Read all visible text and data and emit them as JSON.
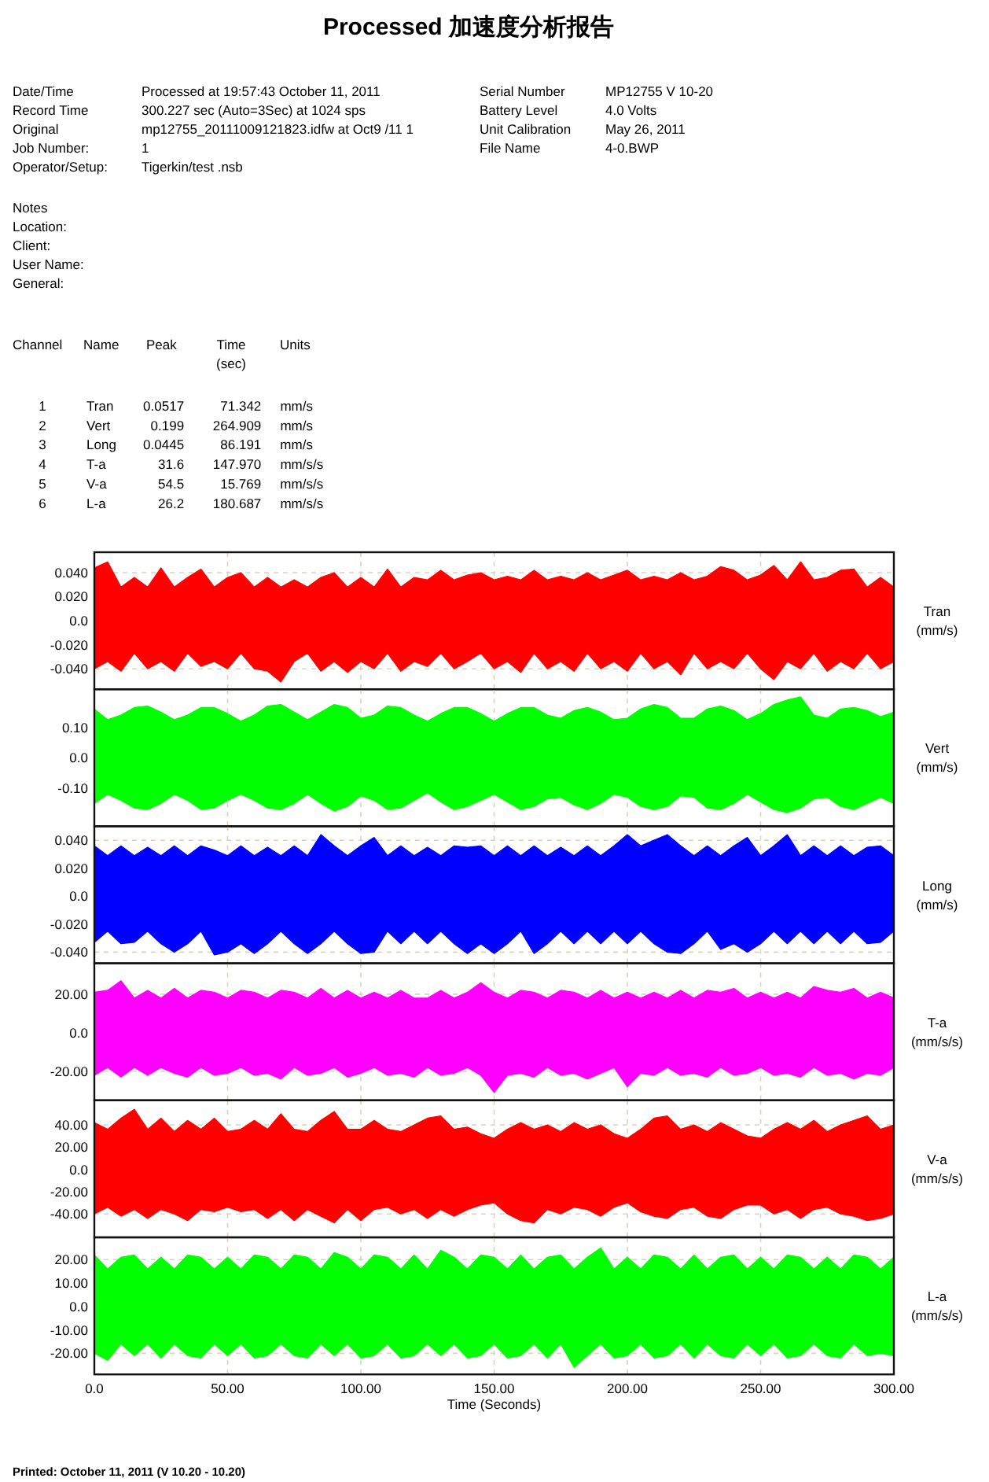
{
  "chart_data": [
    {
      "type": "other",
      "title": "Processed 加速度分析报告",
      "annotations": [
        "Date/Time",
        "Processed at 19:57:43 October 11, 2011",
        "Serial Number",
        "MP12755 V 10-20",
        "Record Time",
        "300.227 sec (Auto=3Sec) at 1024 sps",
        "Battery Level",
        "4.0 Volts",
        "Original",
        "mp12755_20111009121823.idfw at Oct9 /11 1",
        "Unit Calibration",
        "May 26, 2011",
        "Job Number:",
        "1",
        "File Name",
        "4-0.BWP",
        "Operator/Setup:",
        "Tigerkin/test .nsb",
        "Notes",
        "Location:",
        "Client:",
        "User Name:",
        "General:",
        "Channel",
        "Name",
        "Peak",
        "Time (sec)",
        "Units",
        "1 Tran 0.0517 71.342 mm/s",
        "2 Vert 0.199 264.909 mm/s",
        "3 Long 0.0445 86.191 mm/s",
        "4 T-a 31.6 147.970 mm/s/s",
        "5 V-a 54.5 15.769 mm/s/s",
        "6 L-a 26.2 180.687 mm/s/s"
      ]
    },
    {
      "type": "area",
      "ylabel": "Tran (mm/s)",
      "x": [
        0,
        5,
        10,
        15,
        20,
        25,
        30,
        35,
        40,
        45,
        50,
        55,
        60,
        65,
        70,
        75,
        80,
        85,
        90,
        95,
        100,
        105,
        110,
        115,
        120,
        125,
        130,
        135,
        140,
        145,
        150,
        155,
        160,
        165,
        170,
        175,
        180,
        185,
        190,
        195,
        200,
        205,
        210,
        215,
        220,
        225,
        230,
        235,
        240,
        245,
        250,
        255,
        260,
        265,
        270,
        275,
        280,
        285,
        290,
        295,
        300
      ],
      "xlim": [
        0,
        300
      ],
      "xticks": [
        0,
        50,
        100,
        150,
        200,
        250,
        300
      ],
      "ylim": [
        -0.057,
        0.057
      ],
      "yticks": [
        {
          "value": 0.04,
          "label": "0.040"
        },
        {
          "value": 0.02,
          "label": "0.020"
        },
        {
          "value": 0,
          "label": "0.0"
        },
        {
          "value": -0.02,
          "label": "-0.020"
        },
        {
          "value": -0.04,
          "label": "-0.040"
        }
      ],
      "grid": true,
      "tick_labels": "y",
      "series": [
        {
          "color": "#ff0000",
          "values": [
            0.044,
            0.049,
            0.028,
            0.036,
            0.028,
            0.044,
            0.028,
            0.036,
            0.043,
            0.028,
            0.036,
            0.04,
            0.028,
            0.036,
            0.028,
            0.034,
            0.028,
            0.036,
            0.04,
            0.028,
            0.036,
            0.028,
            0.043,
            0.028,
            0.036,
            0.034,
            0.042,
            0.034,
            0.038,
            0.04,
            0.034,
            0.037,
            0.034,
            0.042,
            0.034,
            0.037,
            0.034,
            0.04,
            0.034,
            0.038,
            0.042,
            0.034,
            0.037,
            0.034,
            0.04,
            0.034,
            0.037,
            0.045,
            0.042,
            0.034,
            0.038,
            0.046,
            0.034,
            0.049,
            0.034,
            0.036,
            0.042,
            0.043,
            0.028,
            0.036,
            0.028
          ]
        },
        {
          "color": "#ff0000",
          "values": [
            -0.04,
            -0.034,
            -0.042,
            -0.027,
            -0.04,
            -0.034,
            -0.042,
            -0.027,
            -0.038,
            -0.034,
            -0.04,
            -0.027,
            -0.04,
            -0.042,
            -0.051,
            -0.034,
            -0.027,
            -0.042,
            -0.034,
            -0.043,
            -0.034,
            -0.04,
            -0.027,
            -0.042,
            -0.034,
            -0.038,
            -0.027,
            -0.04,
            -0.034,
            -0.027,
            -0.04,
            -0.034,
            -0.043,
            -0.027,
            -0.04,
            -0.034,
            -0.042,
            -0.027,
            -0.04,
            -0.034,
            -0.042,
            -0.027,
            -0.04,
            -0.034,
            -0.045,
            -0.027,
            -0.04,
            -0.034,
            -0.04,
            -0.027,
            -0.04,
            -0.049,
            -0.034,
            -0.04,
            -0.027,
            -0.042,
            -0.034,
            -0.04,
            -0.027,
            -0.04,
            -0.034
          ]
        }
      ]
    },
    {
      "type": "area",
      "ylabel": "Vert (mm/s)",
      "x": [
        0,
        5,
        10,
        15,
        20,
        25,
        30,
        35,
        40,
        45,
        50,
        55,
        60,
        65,
        70,
        75,
        80,
        85,
        90,
        95,
        100,
        105,
        110,
        115,
        120,
        125,
        130,
        135,
        140,
        145,
        150,
        155,
        160,
        165,
        170,
        175,
        180,
        185,
        190,
        195,
        200,
        205,
        210,
        215,
        220,
        225,
        230,
        235,
        240,
        245,
        250,
        255,
        260,
        265,
        270,
        275,
        280,
        285,
        290,
        295,
        300
      ],
      "xlim": [
        0,
        300
      ],
      "xticks": [
        0,
        50,
        100,
        150,
        200,
        250,
        300
      ],
      "ylim": [
        -0.225,
        0.225
      ],
      "yticks": [
        {
          "value": 0.1,
          "label": "0.10"
        },
        {
          "value": 0,
          "label": "0.0"
        },
        {
          "value": -0.1,
          "label": "-0.10"
        }
      ],
      "grid": true,
      "tick_labels": "y",
      "series": [
        {
          "color": "#00ff00",
          "values": [
            0.16,
            0.125,
            0.14,
            0.165,
            0.17,
            0.15,
            0.125,
            0.14,
            0.165,
            0.165,
            0.145,
            0.12,
            0.14,
            0.17,
            0.175,
            0.15,
            0.125,
            0.15,
            0.175,
            0.165,
            0.13,
            0.14,
            0.17,
            0.165,
            0.14,
            0.12,
            0.145,
            0.165,
            0.165,
            0.145,
            0.12,
            0.145,
            0.165,
            0.165,
            0.14,
            0.13,
            0.155,
            0.165,
            0.15,
            0.125,
            0.13,
            0.16,
            0.175,
            0.165,
            0.13,
            0.13,
            0.16,
            0.17,
            0.155,
            0.125,
            0.145,
            0.175,
            0.19,
            0.2,
            0.14,
            0.13,
            0.16,
            0.165,
            0.155,
            0.135,
            0.15
          ]
        },
        {
          "color": "#00ff00",
          "values": [
            -0.15,
            -0.12,
            -0.14,
            -0.165,
            -0.17,
            -0.15,
            -0.12,
            -0.14,
            -0.17,
            -0.165,
            -0.14,
            -0.12,
            -0.14,
            -0.165,
            -0.17,
            -0.15,
            -0.12,
            -0.15,
            -0.175,
            -0.16,
            -0.125,
            -0.14,
            -0.17,
            -0.165,
            -0.14,
            -0.115,
            -0.145,
            -0.17,
            -0.16,
            -0.14,
            -0.12,
            -0.145,
            -0.17,
            -0.16,
            -0.135,
            -0.13,
            -0.155,
            -0.17,
            -0.15,
            -0.12,
            -0.13,
            -0.16,
            -0.17,
            -0.16,
            -0.125,
            -0.13,
            -0.165,
            -0.17,
            -0.15,
            -0.12,
            -0.145,
            -0.17,
            -0.18,
            -0.165,
            -0.135,
            -0.13,
            -0.16,
            -0.17,
            -0.15,
            -0.13,
            -0.15
          ]
        }
      ]
    },
    {
      "type": "area",
      "ylabel": "Long (mm/s)",
      "x": [
        0,
        5,
        10,
        15,
        20,
        25,
        30,
        35,
        40,
        45,
        50,
        55,
        60,
        65,
        70,
        75,
        80,
        85,
        90,
        95,
        100,
        105,
        110,
        115,
        120,
        125,
        130,
        135,
        140,
        145,
        150,
        155,
        160,
        165,
        170,
        175,
        180,
        185,
        190,
        195,
        200,
        205,
        210,
        215,
        220,
        225,
        230,
        235,
        240,
        245,
        250,
        255,
        260,
        265,
        270,
        275,
        280,
        285,
        290,
        295,
        300
      ],
      "xlim": [
        0,
        300
      ],
      "xticks": [
        0,
        50,
        100,
        150,
        200,
        250,
        300
      ],
      "ylim": [
        -0.048,
        0.05
      ],
      "yticks": [
        {
          "value": 0.04,
          "label": "0.040"
        },
        {
          "value": 0.02,
          "label": "0.020"
        },
        {
          "value": 0,
          "label": "0.0"
        },
        {
          "value": -0.02,
          "label": "-0.020"
        },
        {
          "value": -0.04,
          "label": "-0.040"
        }
      ],
      "grid": true,
      "tick_labels": "y",
      "series": [
        {
          "color": "#0000ff",
          "values": [
            0.036,
            0.029,
            0.036,
            0.029,
            0.035,
            0.029,
            0.036,
            0.029,
            0.036,
            0.033,
            0.029,
            0.036,
            0.029,
            0.035,
            0.029,
            0.036,
            0.029,
            0.044,
            0.036,
            0.029,
            0.036,
            0.042,
            0.029,
            0.036,
            0.029,
            0.035,
            0.029,
            0.036,
            0.035,
            0.036,
            0.029,
            0.036,
            0.029,
            0.036,
            0.029,
            0.035,
            0.029,
            0.036,
            0.029,
            0.036,
            0.044,
            0.036,
            0.04,
            0.044,
            0.036,
            0.029,
            0.036,
            0.029,
            0.036,
            0.042,
            0.029,
            0.036,
            0.044,
            0.029,
            0.036,
            0.029,
            0.036,
            0.029,
            0.035,
            0.036,
            0.029
          ]
        },
        {
          "color": "#0000ff",
          "values": [
            -0.033,
            -0.025,
            -0.034,
            -0.033,
            -0.025,
            -0.034,
            -0.04,
            -0.034,
            -0.025,
            -0.042,
            -0.04,
            -0.034,
            -0.041,
            -0.034,
            -0.025,
            -0.034,
            -0.041,
            -0.034,
            -0.025,
            -0.034,
            -0.041,
            -0.04,
            -0.025,
            -0.034,
            -0.025,
            -0.034,
            -0.025,
            -0.034,
            -0.041,
            -0.034,
            -0.041,
            -0.034,
            -0.025,
            -0.041,
            -0.034,
            -0.025,
            -0.034,
            -0.025,
            -0.034,
            -0.025,
            -0.034,
            -0.025,
            -0.034,
            -0.04,
            -0.041,
            -0.034,
            -0.025,
            -0.038,
            -0.034,
            -0.04,
            -0.034,
            -0.025,
            -0.034,
            -0.025,
            -0.034,
            -0.025,
            -0.034,
            -0.025,
            -0.034,
            -0.033,
            -0.025
          ]
        }
      ]
    },
    {
      "type": "area",
      "ylabel": "T-a (mm/s/s)",
      "x": [
        0,
        5,
        10,
        15,
        20,
        25,
        30,
        35,
        40,
        45,
        50,
        55,
        60,
        65,
        70,
        75,
        80,
        85,
        90,
        95,
        100,
        105,
        110,
        115,
        120,
        125,
        130,
        135,
        140,
        145,
        150,
        155,
        160,
        165,
        170,
        175,
        180,
        185,
        190,
        195,
        200,
        205,
        210,
        215,
        220,
        225,
        230,
        235,
        240,
        245,
        250,
        255,
        260,
        265,
        270,
        275,
        280,
        285,
        290,
        295,
        300
      ],
      "xlim": [
        0,
        300
      ],
      "xticks": [
        0,
        50,
        100,
        150,
        200,
        250,
        300
      ],
      "ylim": [
        -35,
        36
      ],
      "yticks": [
        {
          "value": 20,
          "label": "20.00"
        },
        {
          "value": 0,
          "label": "0.0"
        },
        {
          "value": -20,
          "label": "-20.00"
        }
      ],
      "grid": true,
      "tick_labels": "y",
      "series": [
        {
          "color": "#ff00ff",
          "values": [
            21,
            22,
            27,
            18,
            22,
            18,
            23,
            18,
            22,
            21,
            18,
            22,
            21,
            18,
            22,
            21,
            18,
            23,
            18,
            22,
            18,
            21,
            18,
            22,
            18,
            18,
            22,
            18,
            21,
            26,
            21,
            18,
            22,
            21,
            18,
            22,
            21,
            18,
            22,
            18,
            21,
            18,
            21,
            18,
            22,
            18,
            22,
            21,
            23,
            18,
            21,
            18,
            21,
            18,
            24,
            22,
            21,
            23,
            18,
            21,
            18
          ]
        },
        {
          "color": "#ff00ff",
          "values": [
            -22,
            -18,
            -23,
            -18,
            -22,
            -18,
            -21,
            -23,
            -18,
            -22,
            -21,
            -18,
            -22,
            -21,
            -24,
            -18,
            -22,
            -21,
            -18,
            -23,
            -21,
            -18,
            -22,
            -21,
            -23,
            -18,
            -22,
            -21,
            -18,
            -22,
            -31,
            -22,
            -21,
            -23,
            -18,
            -22,
            -21,
            -24,
            -21,
            -18,
            -28,
            -21,
            -22,
            -18,
            -22,
            -21,
            -23,
            -18,
            -22,
            -21,
            -18,
            -22,
            -21,
            -23,
            -18,
            -22,
            -21,
            -24,
            -21,
            -22,
            -18
          ]
        }
      ]
    },
    {
      "type": "area",
      "ylabel": "V-a (mm/s/s)",
      "x": [
        0,
        5,
        10,
        15,
        20,
        25,
        30,
        35,
        40,
        45,
        50,
        55,
        60,
        65,
        70,
        75,
        80,
        85,
        90,
        95,
        100,
        105,
        110,
        115,
        120,
        125,
        130,
        135,
        140,
        145,
        150,
        155,
        160,
        165,
        170,
        175,
        180,
        185,
        190,
        195,
        200,
        205,
        210,
        215,
        220,
        225,
        230,
        235,
        240,
        245,
        250,
        255,
        260,
        265,
        270,
        275,
        280,
        285,
        290,
        295,
        300
      ],
      "xlim": [
        0,
        300
      ],
      "xticks": [
        0,
        50,
        100,
        150,
        200,
        250,
        300
      ],
      "ylim": [
        -61,
        62
      ],
      "yticks": [
        {
          "value": 40,
          "label": "40.00"
        },
        {
          "value": 20,
          "label": "20.00"
        },
        {
          "value": 0,
          "label": "0.0"
        },
        {
          "value": -20,
          "label": "-20.00"
        },
        {
          "value": -40,
          "label": "-40.00"
        }
      ],
      "grid": true,
      "tick_labels": "y",
      "series": [
        {
          "color": "#ff0000",
          "values": [
            42,
            36,
            46,
            54,
            36,
            46,
            34,
            44,
            36,
            46,
            34,
            36,
            44,
            36,
            50,
            36,
            34,
            44,
            52,
            36,
            36,
            44,
            36,
            34,
            40,
            46,
            48,
            36,
            38,
            32,
            28,
            36,
            42,
            36,
            40,
            34,
            42,
            36,
            40,
            32,
            28,
            36,
            46,
            48,
            36,
            40,
            34,
            42,
            36,
            30,
            28,
            36,
            42,
            36,
            44,
            34,
            40,
            44,
            48,
            36,
            40
          ]
        },
        {
          "color": "#ff0000",
          "values": [
            -40,
            -34,
            -42,
            -36,
            -44,
            -36,
            -40,
            -46,
            -36,
            -38,
            -34,
            -38,
            -36,
            -44,
            -36,
            -46,
            -36,
            -42,
            -48,
            -36,
            -46,
            -36,
            -34,
            -40,
            -36,
            -44,
            -36,
            -42,
            -36,
            -32,
            -30,
            -40,
            -46,
            -48,
            -36,
            -40,
            -34,
            -36,
            -42,
            -34,
            -30,
            -38,
            -42,
            -44,
            -36,
            -34,
            -42,
            -44,
            -36,
            -32,
            -32,
            -40,
            -36,
            -44,
            -36,
            -34,
            -40,
            -42,
            -46,
            -44,
            -40
          ]
        }
      ]
    },
    {
      "type": "area",
      "ylabel": "L-a (mm/s/s)",
      "xlabel": "Time (Seconds)",
      "annotations": [
        "Printed: October 11, 2011 (V 10.20 - 10.20)"
      ],
      "x": [
        0,
        5,
        10,
        15,
        20,
        25,
        30,
        35,
        40,
        45,
        50,
        55,
        60,
        65,
        70,
        75,
        80,
        85,
        90,
        95,
        100,
        105,
        110,
        115,
        120,
        125,
        130,
        135,
        140,
        145,
        150,
        155,
        160,
        165,
        170,
        175,
        180,
        185,
        190,
        195,
        200,
        205,
        210,
        215,
        220,
        225,
        230,
        235,
        240,
        245,
        250,
        255,
        260,
        265,
        270,
        275,
        280,
        285,
        290,
        295,
        300
      ],
      "xlim": [
        0,
        300
      ],
      "xticks": [
        {
          "value": 0,
          "label": "0.0"
        },
        {
          "value": 50,
          "label": "50.00"
        },
        {
          "value": 100,
          "label": "100.00"
        },
        {
          "value": 150,
          "label": "150.00"
        },
        {
          "value": 200,
          "label": "200.00"
        },
        {
          "value": 250,
          "label": "250.00"
        },
        {
          "value": 300,
          "label": "300.00"
        }
      ],
      "ylim": [
        -29,
        29.5
      ],
      "yticks": [
        {
          "value": 20,
          "label": "20.00"
        },
        {
          "value": 10,
          "label": "10.00"
        },
        {
          "value": 0,
          "label": "0.0"
        },
        {
          "value": -10,
          "label": "-10.00"
        },
        {
          "value": -20,
          "label": "-20.00"
        }
      ],
      "grid": true,
      "series": [
        {
          "color": "#00ff00",
          "values": [
            22,
            16,
            21,
            22,
            16,
            21,
            16,
            22,
            21,
            16,
            21,
            16,
            22,
            21,
            16,
            22,
            21,
            16,
            23,
            21,
            16,
            22,
            21,
            16,
            22,
            16,
            24,
            21,
            16,
            22,
            21,
            16,
            22,
            16,
            21,
            22,
            16,
            21,
            25,
            16,
            21,
            16,
            22,
            21,
            16,
            22,
            16,
            21,
            22,
            16,
            21,
            16,
            22,
            21,
            16,
            21,
            16,
            22,
            21,
            16,
            21
          ]
        },
        {
          "color": "#00ff00",
          "values": [
            -20,
            -23,
            -16,
            -21,
            -16,
            -22,
            -16,
            -21,
            -22,
            -16,
            -21,
            -16,
            -22,
            -21,
            -16,
            -21,
            -22,
            -16,
            -21,
            -16,
            -22,
            -21,
            -16,
            -22,
            -21,
            -16,
            -21,
            -16,
            -22,
            -21,
            -16,
            -22,
            -21,
            -16,
            -22,
            -16,
            -26,
            -21,
            -16,
            -22,
            -21,
            -16,
            -22,
            -21,
            -16,
            -22,
            -16,
            -21,
            -22,
            -16,
            -21,
            -16,
            -22,
            -21,
            -16,
            -21,
            -22,
            -16,
            -21,
            -20,
            -21
          ]
        }
      ]
    }
  ]
}
